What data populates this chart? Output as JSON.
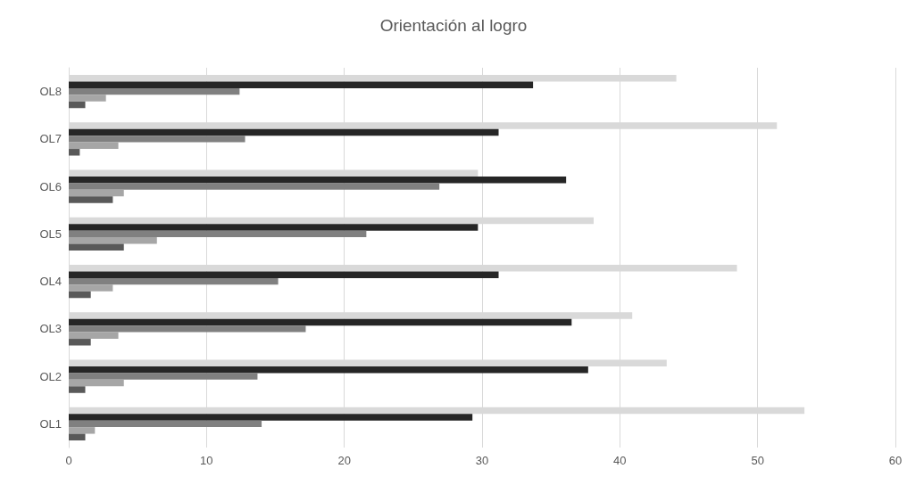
{
  "chart_data": {
    "type": "bar",
    "orientation": "horizontal",
    "title": "Orientación al logro",
    "categories": [
      "OL8",
      "OL7",
      "OL6",
      "OL5",
      "OL4",
      "OL3",
      "OL2",
      "OL1"
    ],
    "series": [
      {
        "color": "#d9d9d9",
        "values": [
          44.1,
          51.4,
          29.7,
          38.1,
          48.5,
          40.9,
          43.4,
          53.4
        ]
      },
      {
        "color": "#262626",
        "values": [
          33.7,
          31.2,
          36.1,
          29.7,
          31.2,
          36.5,
          37.7,
          29.3
        ]
      },
      {
        "color": "#808080",
        "values": [
          12.4,
          12.8,
          26.9,
          21.6,
          15.2,
          17.2,
          13.7,
          14.0
        ]
      },
      {
        "color": "#a6a6a6",
        "values": [
          2.7,
          3.6,
          4.0,
          6.4,
          3.2,
          3.6,
          4.0,
          1.9
        ]
      },
      {
        "color": "#595959",
        "values": [
          1.2,
          0.8,
          3.2,
          4.0,
          1.6,
          1.6,
          1.2,
          1.2
        ]
      }
    ],
    "xlim": [
      0,
      60
    ],
    "xticks": [
      0,
      10,
      20,
      30,
      40,
      50,
      60
    ],
    "grid": "x"
  }
}
